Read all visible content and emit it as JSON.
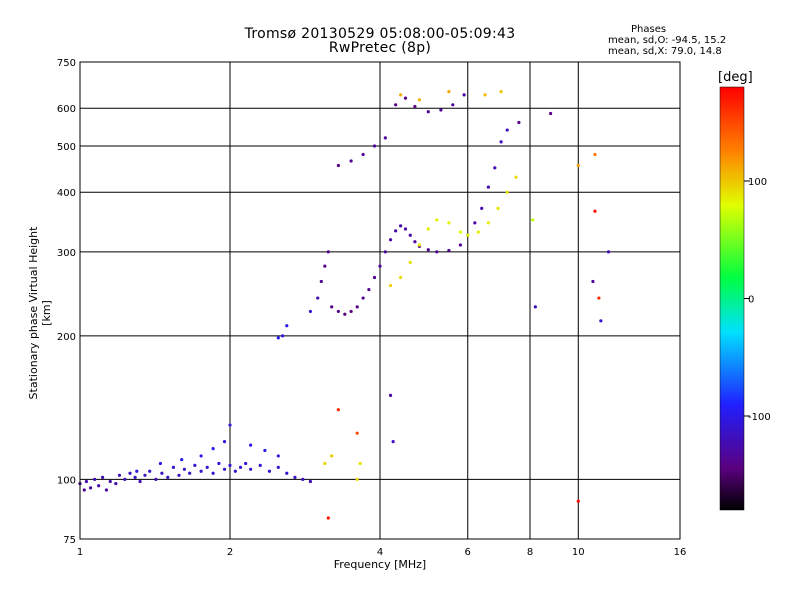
{
  "chart_data": {
    "type": "scatter",
    "title": "Tromsø 20130529 05:08:00-05:09:43",
    "subtitle": "RwPretec (8p)",
    "xlabel": "Frequency [MHz]",
    "ylabel": "Stationary phase Virtual Height [km]",
    "x_scale": "log2",
    "y_scale": "log",
    "xlim": [
      1,
      16
    ],
    "ylim": [
      75,
      750
    ],
    "x_ticks": [
      1,
      2,
      4,
      6,
      8,
      10,
      16
    ],
    "y_ticks": [
      75,
      100,
      200,
      300,
      400,
      500,
      600,
      750
    ],
    "grid": true,
    "phase_stats": {
      "title": "Phases",
      "line1": "mean, sd,O: -94.5, 15.2",
      "line2": "mean, sd,X:  79.0, 14.8"
    },
    "colorbar": {
      "unit": "[deg]",
      "ticks": [
        100,
        0,
        -100
      ],
      "range": [
        -180,
        180
      ]
    },
    "series": [
      {
        "points": [
          [
            1.0,
            98,
            -130
          ],
          [
            1.02,
            95,
            -135
          ],
          [
            1.03,
            99,
            -125
          ],
          [
            1.05,
            96,
            -130
          ],
          [
            1.07,
            100,
            -120
          ],
          [
            1.09,
            97,
            -128
          ],
          [
            1.11,
            101,
            -122
          ],
          [
            1.13,
            95,
            -132
          ],
          [
            1.15,
            99,
            -126
          ],
          [
            1.18,
            98,
            -124
          ],
          [
            1.2,
            102,
            -118
          ],
          [
            1.23,
            100,
            -120
          ],
          [
            1.26,
            103,
            -115
          ],
          [
            1.29,
            101,
            -118
          ],
          [
            1.32,
            99,
            -122
          ],
          [
            1.35,
            102,
            -116
          ],
          [
            1.38,
            104,
            -112
          ],
          [
            1.42,
            100,
            -120
          ],
          [
            1.46,
            103,
            -114
          ],
          [
            1.5,
            101,
            -118
          ],
          [
            1.54,
            106,
            -110
          ],
          [
            1.58,
            102,
            -116
          ],
          [
            1.62,
            105,
            -112
          ],
          [
            1.66,
            103,
            -114
          ],
          [
            1.7,
            107,
            -108
          ],
          [
            1.75,
            104,
            -112
          ],
          [
            1.8,
            106,
            -110
          ],
          [
            1.85,
            103,
            -114
          ],
          [
            1.9,
            108,
            -106
          ],
          [
            1.95,
            105,
            -110
          ],
          [
            2.0,
            107,
            -108
          ],
          [
            2.05,
            104,
            -112
          ],
          [
            2.1,
            106,
            -110
          ],
          [
            2.15,
            108,
            -106
          ],
          [
            2.2,
            105,
            -110
          ],
          [
            2.3,
            107,
            -108
          ],
          [
            2.4,
            104,
            -112
          ],
          [
            2.5,
            106,
            -110
          ],
          [
            2.6,
            103,
            -114
          ],
          [
            2.7,
            101,
            -116
          ],
          [
            2.8,
            100,
            -118
          ],
          [
            2.9,
            99,
            -120
          ],
          [
            1.3,
            104,
            -100
          ],
          [
            1.45,
            108,
            -98
          ],
          [
            1.6,
            110,
            -96
          ],
          [
            1.75,
            112,
            -100
          ],
          [
            1.85,
            116,
            -98
          ],
          [
            1.95,
            120,
            -102
          ],
          [
            2.0,
            130,
            -104
          ],
          [
            2.2,
            118,
            -100
          ],
          [
            2.35,
            115,
            -98
          ],
          [
            2.5,
            112,
            -102
          ]
        ]
      },
      {
        "points": [
          [
            2.5,
            198,
            -100
          ],
          [
            2.55,
            200,
            -104
          ],
          [
            2.6,
            210,
            -102
          ],
          [
            2.9,
            225,
            -110
          ],
          [
            3.0,
            240,
            -125
          ],
          [
            3.05,
            260,
            -135
          ],
          [
            3.1,
            280,
            -140
          ],
          [
            3.15,
            300,
            -138
          ],
          [
            3.2,
            230,
            -140
          ],
          [
            3.3,
            225,
            -142
          ],
          [
            3.4,
            222,
            -145
          ],
          [
            3.5,
            225,
            -143
          ],
          [
            3.6,
            230,
            -140
          ],
          [
            3.7,
            240,
            -138
          ],
          [
            3.8,
            250,
            -136
          ],
          [
            3.9,
            265,
            -134
          ],
          [
            4.0,
            280,
            -132
          ],
          [
            4.1,
            300,
            -130
          ],
          [
            4.2,
            318,
            -128
          ],
          [
            4.3,
            332,
            -126
          ],
          [
            4.4,
            340,
            -125
          ],
          [
            4.5,
            335,
            -126
          ],
          [
            4.6,
            325,
            -128
          ],
          [
            4.7,
            315,
            -130
          ],
          [
            4.8,
            308,
            -132
          ],
          [
            5.0,
            303,
            -134
          ],
          [
            5.2,
            300,
            -136
          ],
          [
            5.5,
            302,
            -134
          ],
          [
            5.8,
            310,
            -132
          ],
          [
            6.0,
            325,
            -130
          ],
          [
            6.2,
            345,
            -128
          ],
          [
            6.4,
            370,
            -126
          ],
          [
            6.6,
            410,
            -124
          ],
          [
            6.8,
            450,
            -122
          ],
          [
            7.0,
            510,
            -120
          ],
          [
            7.2,
            540,
            -118
          ],
          [
            3.3,
            455,
            -138
          ],
          [
            3.5,
            465,
            -136
          ],
          [
            3.7,
            480,
            -134
          ],
          [
            3.9,
            500,
            -132
          ],
          [
            4.1,
            520,
            -130
          ],
          [
            4.3,
            610,
            -140
          ],
          [
            4.5,
            630,
            -138
          ],
          [
            4.7,
            605,
            -140
          ],
          [
            5.0,
            590,
            -136
          ],
          [
            5.3,
            595,
            -134
          ],
          [
            5.6,
            610,
            -132
          ],
          [
            5.9,
            640,
            -128
          ],
          [
            7.6,
            560,
            -138
          ],
          [
            8.8,
            585,
            -140
          ],
          [
            8.2,
            230,
            -120
          ],
          [
            4.2,
            150,
            -130
          ],
          [
            4.25,
            120,
            -115
          ]
        ]
      },
      {
        "points": [
          [
            4.2,
            255,
            95
          ],
          [
            4.4,
            265,
            92
          ],
          [
            4.6,
            285,
            90
          ],
          [
            4.8,
            310,
            88
          ],
          [
            5.0,
            335,
            86
          ],
          [
            5.2,
            350,
            84
          ],
          [
            5.5,
            345,
            82
          ],
          [
            5.8,
            330,
            80
          ],
          [
            6.0,
            325,
            82
          ],
          [
            6.3,
            330,
            84
          ],
          [
            6.6,
            345,
            86
          ],
          [
            6.9,
            370,
            88
          ],
          [
            7.2,
            400,
            90
          ],
          [
            7.5,
            430,
            92
          ],
          [
            4.4,
            640,
            110
          ],
          [
            4.8,
            625,
            108
          ],
          [
            5.5,
            650,
            112
          ],
          [
            6.5,
            640,
            105
          ],
          [
            7.0,
            650,
            100
          ],
          [
            3.1,
            108,
            95
          ],
          [
            3.2,
            112,
            98
          ],
          [
            3.6,
            100,
            92
          ],
          [
            3.65,
            108,
            90
          ],
          [
            8.1,
            350,
            70
          ],
          [
            10.0,
            455,
            115
          ],
          [
            10.8,
            480,
            130
          ]
        ]
      },
      {
        "points": [
          [
            3.15,
            83,
            170
          ],
          [
            3.3,
            140,
            160
          ],
          [
            3.6,
            125,
            150
          ],
          [
            10.0,
            90,
            175
          ],
          [
            10.8,
            365,
            175
          ],
          [
            11.0,
            240,
            165
          ],
          [
            11.1,
            215,
            -110
          ],
          [
            11.5,
            300,
            -120
          ],
          [
            10.7,
            260,
            -130
          ]
        ]
      }
    ]
  }
}
